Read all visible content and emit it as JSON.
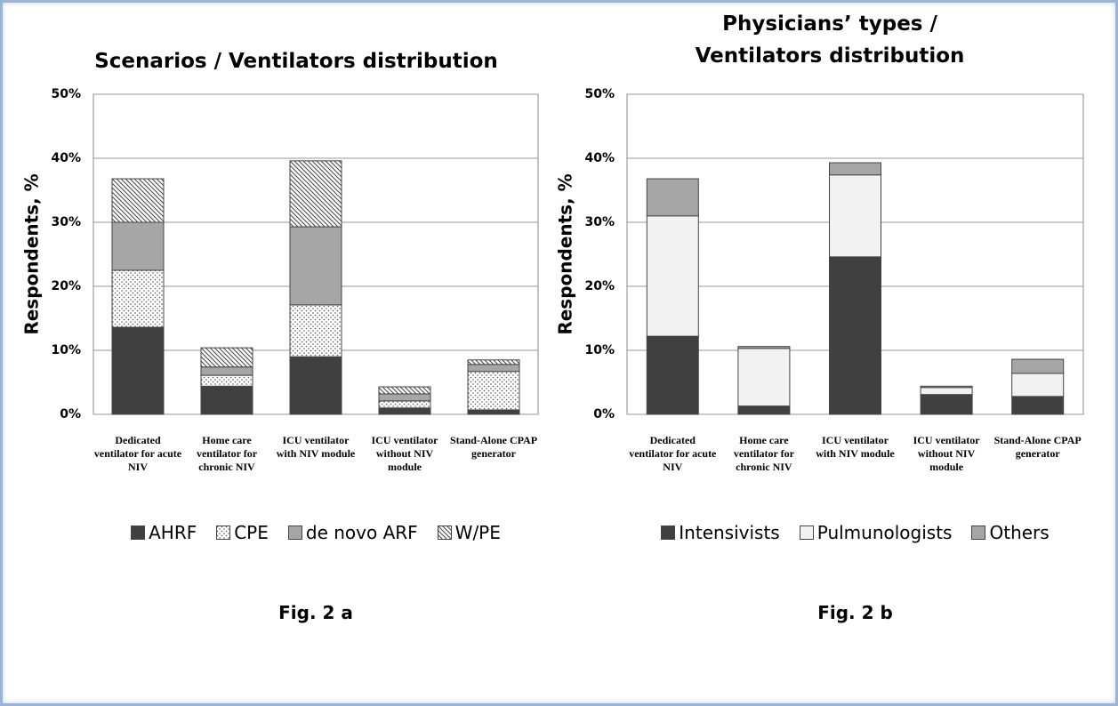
{
  "chart_data": [
    {
      "type": "stacked_bar",
      "title": "Scenarios / Ventilators distribution",
      "ylabel": "Respondents, %",
      "caption": "Fig. 2 a",
      "categories": [
        "Dedicated ventilator for acute NIV",
        "Home care ventilator for chronic NIV",
        "ICU ventilator with NIV module",
        "ICU ventilator without NIV module",
        "Stand-Alone CPAP generator"
      ],
      "series": [
        {
          "name": "AHRF",
          "color": "#404040",
          "pattern": "solid",
          "values": [
            13.6,
            4.4,
            9.0,
            1.0,
            0.7
          ]
        },
        {
          "name": "CPE",
          "color": "#ffffff",
          "pattern": "dots",
          "values": [
            8.9,
            1.7,
            8.1,
            1.1,
            6.0
          ]
        },
        {
          "name": "de novo ARF",
          "color": "#a6a6a6",
          "pattern": "solid",
          "values": [
            7.5,
            1.3,
            12.2,
            1.1,
            1.1
          ]
        },
        {
          "name": "W/PE",
          "color": "#ffffff",
          "pattern": "hatch",
          "values": [
            6.8,
            3.0,
            10.3,
            1.1,
            0.7
          ]
        }
      ],
      "ylim": [
        0,
        50
      ],
      "yticks": [
        {
          "value": 0,
          "label": "0%"
        },
        {
          "value": 10,
          "label": "10%"
        },
        {
          "value": 20,
          "label": "20%"
        },
        {
          "value": 30,
          "label": "30%"
        },
        {
          "value": 40,
          "label": "40%"
        },
        {
          "value": 50,
          "label": "50%"
        }
      ],
      "grid": true
    },
    {
      "type": "stacked_bar",
      "title": "Physicians’ types / Ventilators distribution",
      "ylabel": "Respondents, %",
      "caption": "Fig. 2 b",
      "categories": [
        "Dedicated ventilator for acute NIV",
        "Home care ventilator for chronic NIV",
        "ICU ventilator with NIV module",
        "ICU ventilator without NIV module",
        "Stand-Alone CPAP generator"
      ],
      "series": [
        {
          "name": "Intensivists",
          "color": "#404040",
          "pattern": "solid",
          "values": [
            12.2,
            1.3,
            24.6,
            3.1,
            2.8
          ]
        },
        {
          "name": "Pulmunologists",
          "color": "#f2f2f2",
          "pattern": "solid",
          "values": [
            18.8,
            9.0,
            12.8,
            1.1,
            3.6
          ]
        },
        {
          "name": "Others",
          "color": "#a6a6a6",
          "pattern": "solid",
          "values": [
            5.8,
            0.3,
            1.9,
            0.2,
            2.2
          ]
        }
      ],
      "ylim": [
        0,
        50
      ],
      "yticks": [
        {
          "value": 0,
          "label": "0%"
        },
        {
          "value": 10,
          "label": "10%"
        },
        {
          "value": 20,
          "label": "20%"
        },
        {
          "value": 30,
          "label": "30%"
        },
        {
          "value": 40,
          "label": "40%"
        },
        {
          "value": 50,
          "label": "50%"
        }
      ],
      "grid": true
    }
  ]
}
